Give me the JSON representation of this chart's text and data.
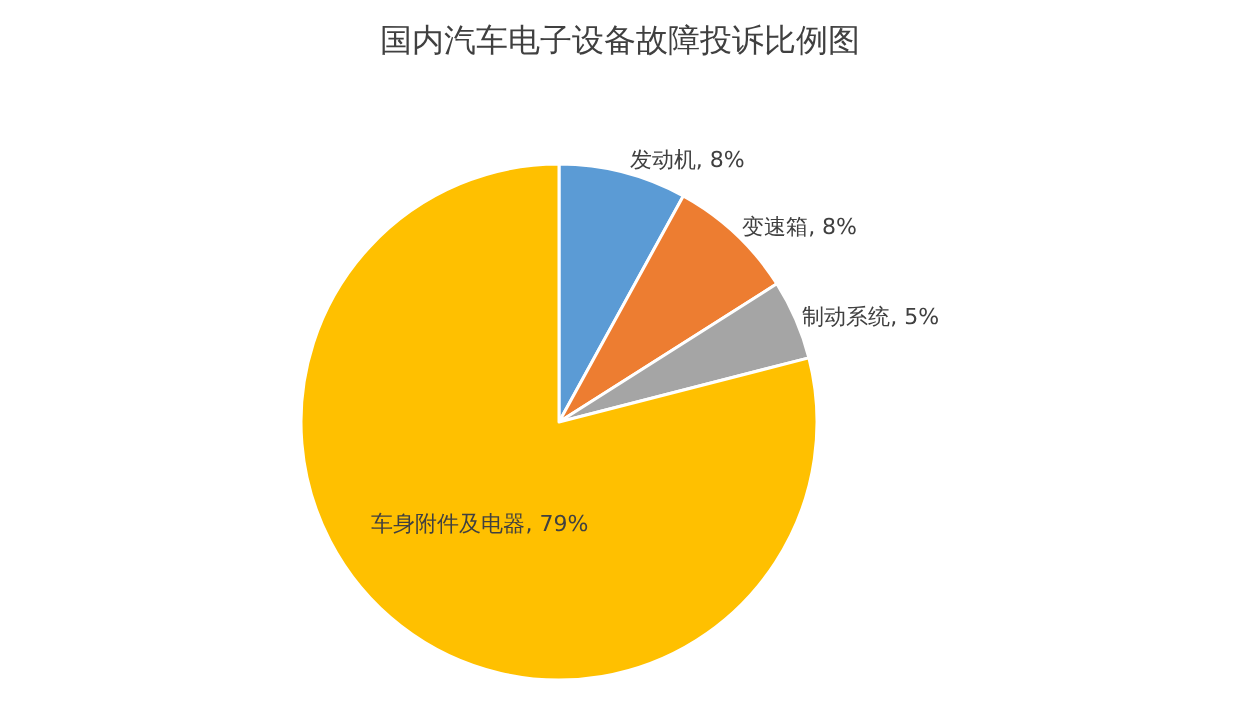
{
  "chart_data": {
    "type": "pie",
    "title": "国内汽车电子设备故障投诉比例图",
    "categories": [
      "发动机",
      "变速箱",
      "制动系统",
      "车身附件及电器"
    ],
    "values": [
      8,
      8,
      5,
      79
    ],
    "colors": [
      "#5b9bd5",
      "#ed7d31",
      "#a5a5a5",
      "#ffc000"
    ],
    "value_labels": [
      "8%",
      "8%",
      "5%",
      "79%"
    ],
    "legend": false
  }
}
